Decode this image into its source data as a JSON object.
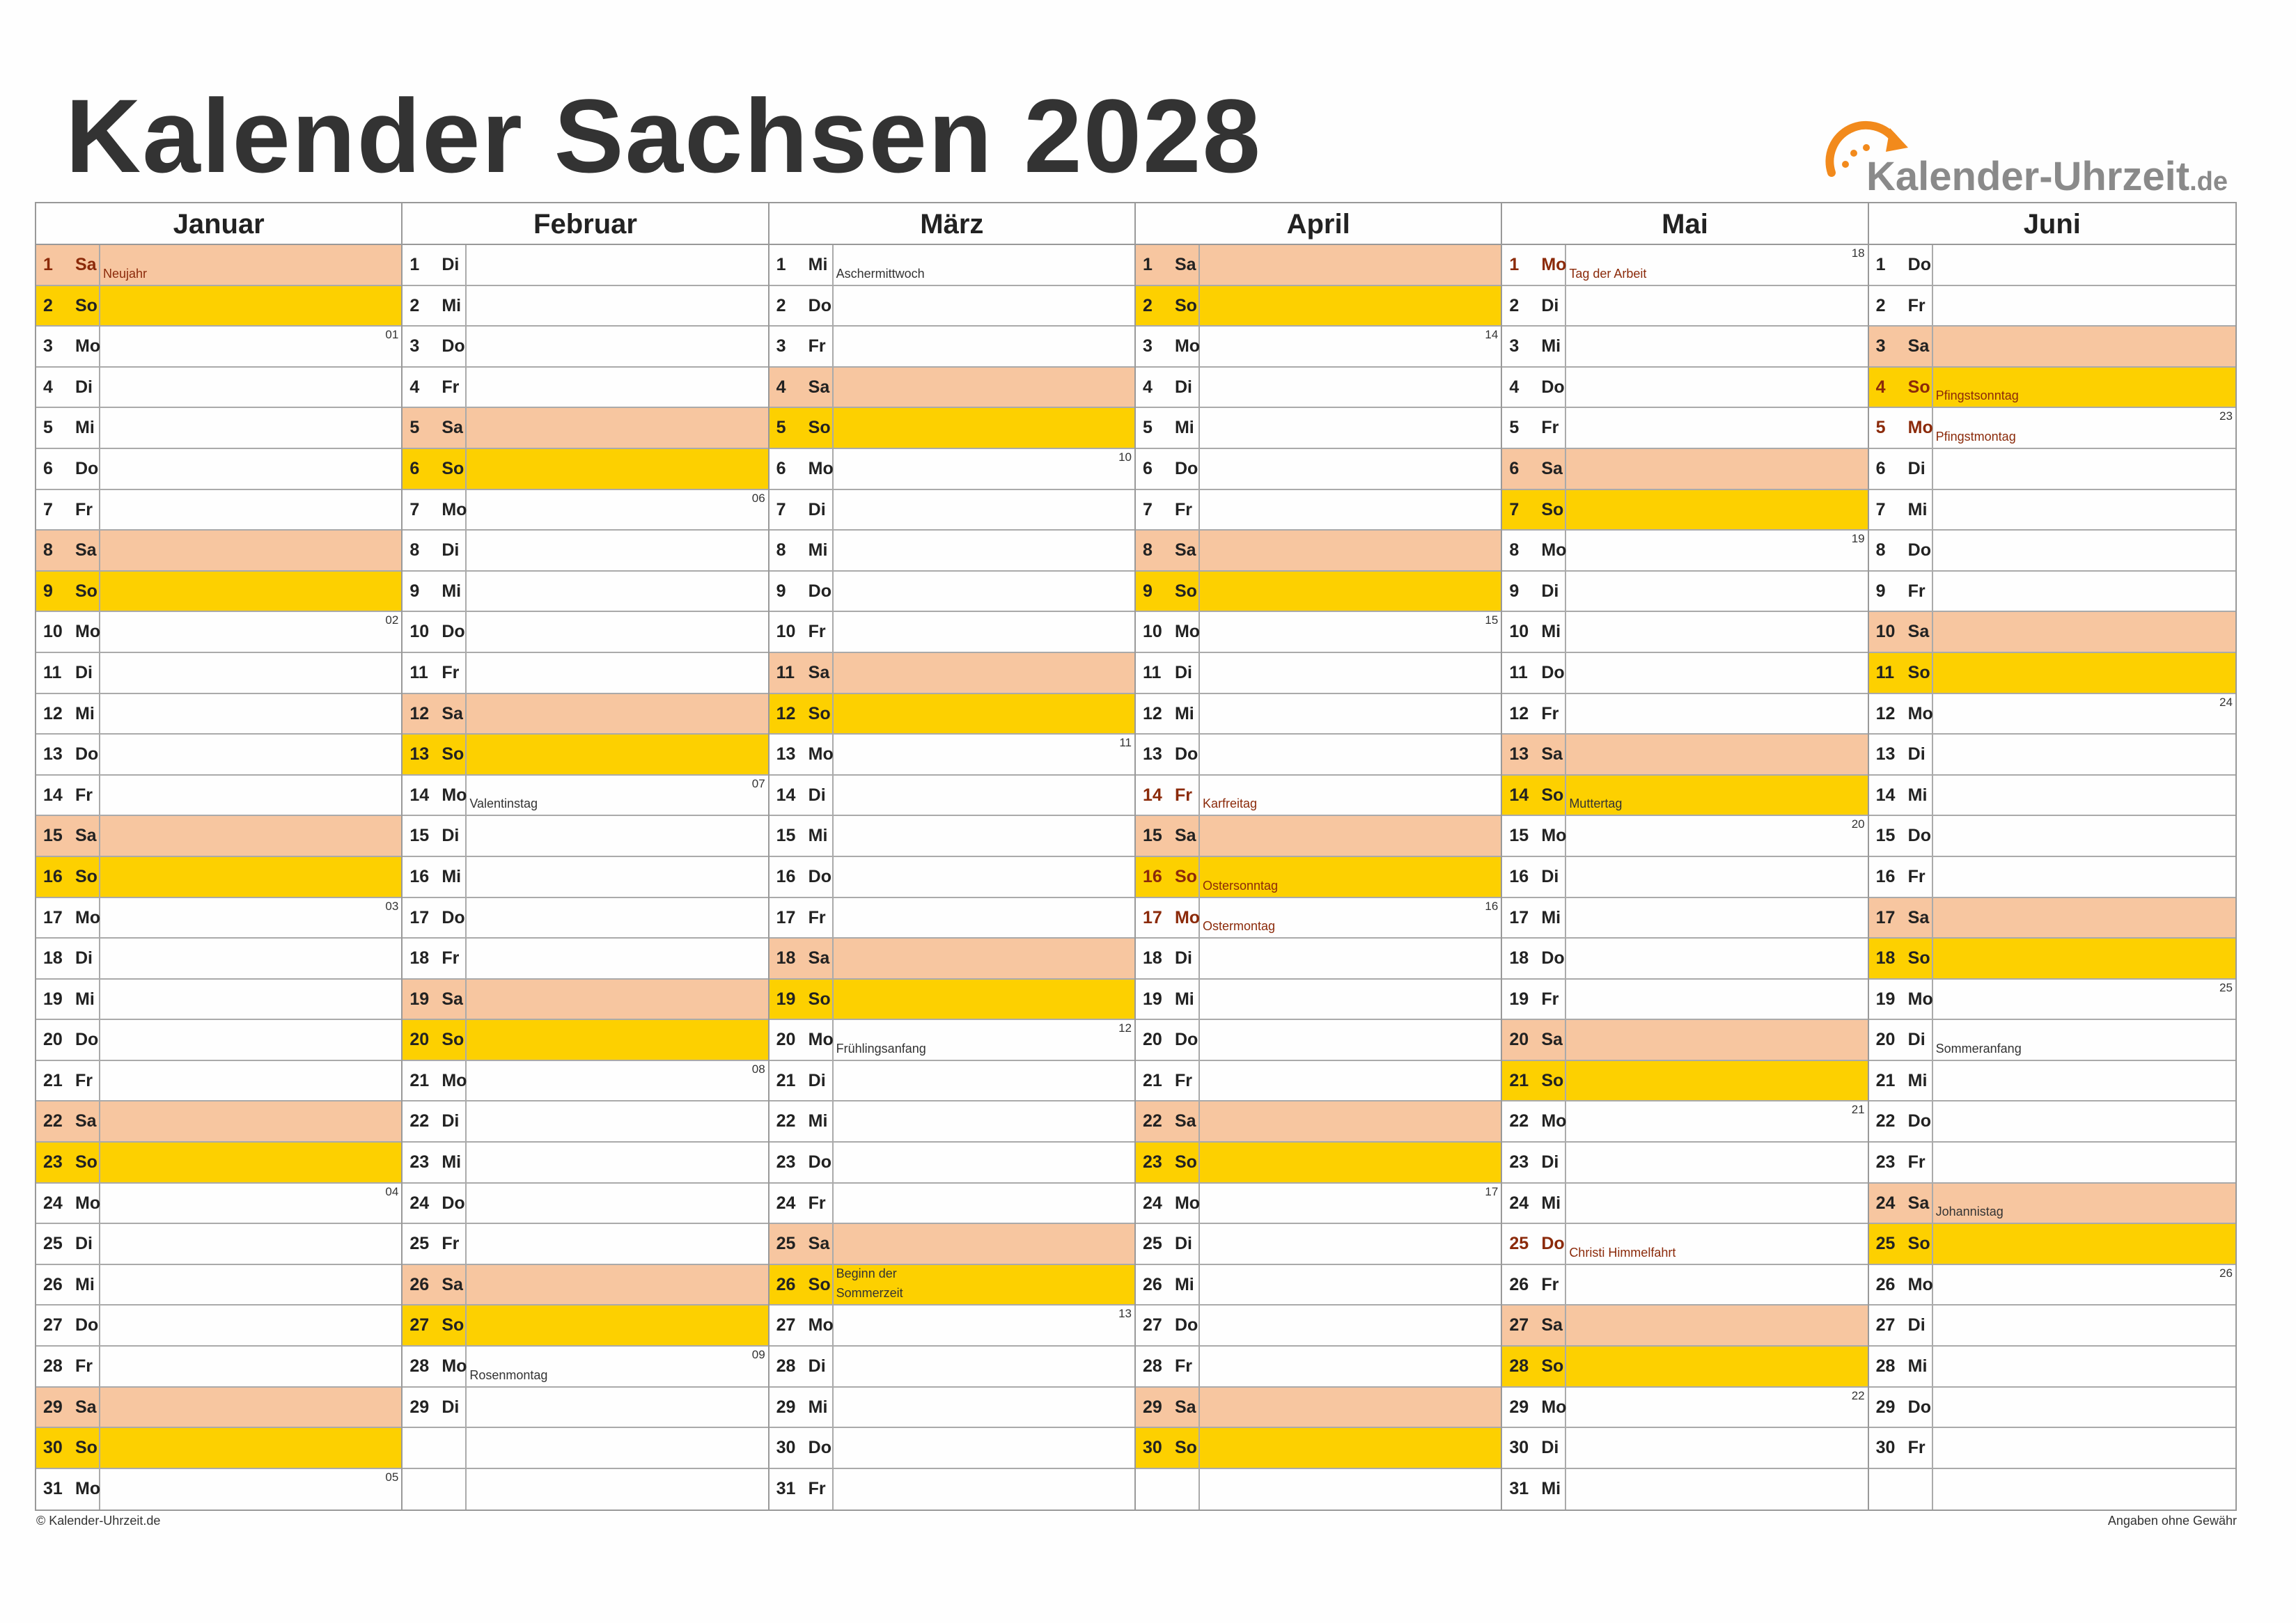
{
  "title": "Kalender Sachsen 2028",
  "logo": {
    "name": "Kalender-Uhrzeit",
    "tld": ".de",
    "icon": "clock-arrow-icon",
    "accent": "#f28a1c"
  },
  "footer": {
    "left": "© Kalender-Uhrzeit.de",
    "right": "Angaben ohne Gewähr"
  },
  "colors": {
    "saturday": "#f7c6a0",
    "sunday": "#fdd000",
    "holiday_text": "#8b2a0a"
  },
  "months": [
    {
      "name": "Januar",
      "days": [
        {
          "d": "1",
          "wd": "Sa",
          "type": "sat",
          "hol": true,
          "ev": "Neujahr"
        },
        {
          "d": "2",
          "wd": "So",
          "type": "sun"
        },
        {
          "d": "3",
          "wd": "Mo",
          "wk": "01"
        },
        {
          "d": "4",
          "wd": "Di"
        },
        {
          "d": "5",
          "wd": "Mi"
        },
        {
          "d": "6",
          "wd": "Do"
        },
        {
          "d": "7",
          "wd": "Fr"
        },
        {
          "d": "8",
          "wd": "Sa",
          "type": "sat"
        },
        {
          "d": "9",
          "wd": "So",
          "type": "sun"
        },
        {
          "d": "10",
          "wd": "Mo",
          "wk": "02"
        },
        {
          "d": "11",
          "wd": "Di"
        },
        {
          "d": "12",
          "wd": "Mi"
        },
        {
          "d": "13",
          "wd": "Do"
        },
        {
          "d": "14",
          "wd": "Fr"
        },
        {
          "d": "15",
          "wd": "Sa",
          "type": "sat"
        },
        {
          "d": "16",
          "wd": "So",
          "type": "sun"
        },
        {
          "d": "17",
          "wd": "Mo",
          "wk": "03"
        },
        {
          "d": "18",
          "wd": "Di"
        },
        {
          "d": "19",
          "wd": "Mi"
        },
        {
          "d": "20",
          "wd": "Do"
        },
        {
          "d": "21",
          "wd": "Fr"
        },
        {
          "d": "22",
          "wd": "Sa",
          "type": "sat"
        },
        {
          "d": "23",
          "wd": "So",
          "type": "sun"
        },
        {
          "d": "24",
          "wd": "Mo",
          "wk": "04"
        },
        {
          "d": "25",
          "wd": "Di"
        },
        {
          "d": "26",
          "wd": "Mi"
        },
        {
          "d": "27",
          "wd": "Do"
        },
        {
          "d": "28",
          "wd": "Fr"
        },
        {
          "d": "29",
          "wd": "Sa",
          "type": "sat"
        },
        {
          "d": "30",
          "wd": "So",
          "type": "sun"
        },
        {
          "d": "31",
          "wd": "Mo",
          "wk": "05"
        }
      ]
    },
    {
      "name": "Februar",
      "days": [
        {
          "d": "1",
          "wd": "Di"
        },
        {
          "d": "2",
          "wd": "Mi"
        },
        {
          "d": "3",
          "wd": "Do"
        },
        {
          "d": "4",
          "wd": "Fr"
        },
        {
          "d": "5",
          "wd": "Sa",
          "type": "sat"
        },
        {
          "d": "6",
          "wd": "So",
          "type": "sun"
        },
        {
          "d": "7",
          "wd": "Mo",
          "wk": "06"
        },
        {
          "d": "8",
          "wd": "Di"
        },
        {
          "d": "9",
          "wd": "Mi"
        },
        {
          "d": "10",
          "wd": "Do"
        },
        {
          "d": "11",
          "wd": "Fr"
        },
        {
          "d": "12",
          "wd": "Sa",
          "type": "sat"
        },
        {
          "d": "13",
          "wd": "So",
          "type": "sun"
        },
        {
          "d": "14",
          "wd": "Mo",
          "wk": "07",
          "ev": "Valentinstag"
        },
        {
          "d": "15",
          "wd": "Di"
        },
        {
          "d": "16",
          "wd": "Mi"
        },
        {
          "d": "17",
          "wd": "Do"
        },
        {
          "d": "18",
          "wd": "Fr"
        },
        {
          "d": "19",
          "wd": "Sa",
          "type": "sat"
        },
        {
          "d": "20",
          "wd": "So",
          "type": "sun"
        },
        {
          "d": "21",
          "wd": "Mo",
          "wk": "08"
        },
        {
          "d": "22",
          "wd": "Di"
        },
        {
          "d": "23",
          "wd": "Mi"
        },
        {
          "d": "24",
          "wd": "Do"
        },
        {
          "d": "25",
          "wd": "Fr"
        },
        {
          "d": "26",
          "wd": "Sa",
          "type": "sat"
        },
        {
          "d": "27",
          "wd": "So",
          "type": "sun"
        },
        {
          "d": "28",
          "wd": "Mo",
          "wk": "09",
          "ev": "Rosenmontag"
        },
        {
          "d": "29",
          "wd": "Di"
        }
      ]
    },
    {
      "name": "März",
      "days": [
        {
          "d": "1",
          "wd": "Mi",
          "ev": "Aschermittwoch"
        },
        {
          "d": "2",
          "wd": "Do"
        },
        {
          "d": "3",
          "wd": "Fr"
        },
        {
          "d": "4",
          "wd": "Sa",
          "type": "sat"
        },
        {
          "d": "5",
          "wd": "So",
          "type": "sun"
        },
        {
          "d": "6",
          "wd": "Mo",
          "wk": "10"
        },
        {
          "d": "7",
          "wd": "Di"
        },
        {
          "d": "8",
          "wd": "Mi"
        },
        {
          "d": "9",
          "wd": "Do"
        },
        {
          "d": "10",
          "wd": "Fr"
        },
        {
          "d": "11",
          "wd": "Sa",
          "type": "sat"
        },
        {
          "d": "12",
          "wd": "So",
          "type": "sun"
        },
        {
          "d": "13",
          "wd": "Mo",
          "wk": "11"
        },
        {
          "d": "14",
          "wd": "Di"
        },
        {
          "d": "15",
          "wd": "Mi"
        },
        {
          "d": "16",
          "wd": "Do"
        },
        {
          "d": "17",
          "wd": "Fr"
        },
        {
          "d": "18",
          "wd": "Sa",
          "type": "sat"
        },
        {
          "d": "19",
          "wd": "So",
          "type": "sun"
        },
        {
          "d": "20",
          "wd": "Mo",
          "wk": "12",
          "ev": "Frühlingsanfang"
        },
        {
          "d": "21",
          "wd": "Di"
        },
        {
          "d": "22",
          "wd": "Mi"
        },
        {
          "d": "23",
          "wd": "Do"
        },
        {
          "d": "24",
          "wd": "Fr"
        },
        {
          "d": "25",
          "wd": "Sa",
          "type": "sat"
        },
        {
          "d": "26",
          "wd": "So",
          "type": "sun",
          "ev": "Beginn der Sommerzeit",
          "two": true
        },
        {
          "d": "27",
          "wd": "Mo",
          "wk": "13"
        },
        {
          "d": "28",
          "wd": "Di"
        },
        {
          "d": "29",
          "wd": "Mi"
        },
        {
          "d": "30",
          "wd": "Do"
        },
        {
          "d": "31",
          "wd": "Fr"
        }
      ]
    },
    {
      "name": "April",
      "days": [
        {
          "d": "1",
          "wd": "Sa",
          "type": "sat"
        },
        {
          "d": "2",
          "wd": "So",
          "type": "sun"
        },
        {
          "d": "3",
          "wd": "Mo",
          "wk": "14"
        },
        {
          "d": "4",
          "wd": "Di"
        },
        {
          "d": "5",
          "wd": "Mi"
        },
        {
          "d": "6",
          "wd": "Do"
        },
        {
          "d": "7",
          "wd": "Fr"
        },
        {
          "d": "8",
          "wd": "Sa",
          "type": "sat"
        },
        {
          "d": "9",
          "wd": "So",
          "type": "sun"
        },
        {
          "d": "10",
          "wd": "Mo",
          "wk": "15"
        },
        {
          "d": "11",
          "wd": "Di"
        },
        {
          "d": "12",
          "wd": "Mi"
        },
        {
          "d": "13",
          "wd": "Do"
        },
        {
          "d": "14",
          "wd": "Fr",
          "hol": true,
          "ev": "Karfreitag"
        },
        {
          "d": "15",
          "wd": "Sa",
          "type": "sat"
        },
        {
          "d": "16",
          "wd": "So",
          "type": "sun",
          "hol": true,
          "ev": "Ostersonntag"
        },
        {
          "d": "17",
          "wd": "Mo",
          "wk": "16",
          "hol": true,
          "ev": "Ostermontag"
        },
        {
          "d": "18",
          "wd": "Di"
        },
        {
          "d": "19",
          "wd": "Mi"
        },
        {
          "d": "20",
          "wd": "Do"
        },
        {
          "d": "21",
          "wd": "Fr"
        },
        {
          "d": "22",
          "wd": "Sa",
          "type": "sat"
        },
        {
          "d": "23",
          "wd": "So",
          "type": "sun"
        },
        {
          "d": "24",
          "wd": "Mo",
          "wk": "17"
        },
        {
          "d": "25",
          "wd": "Di"
        },
        {
          "d": "26",
          "wd": "Mi"
        },
        {
          "d": "27",
          "wd": "Do"
        },
        {
          "d": "28",
          "wd": "Fr"
        },
        {
          "d": "29",
          "wd": "Sa",
          "type": "sat"
        },
        {
          "d": "30",
          "wd": "So",
          "type": "sun"
        }
      ]
    },
    {
      "name": "Mai",
      "days": [
        {
          "d": "1",
          "wd": "Mo",
          "wk": "18",
          "hol": true,
          "ev": "Tag der Arbeit"
        },
        {
          "d": "2",
          "wd": "Di"
        },
        {
          "d": "3",
          "wd": "Mi"
        },
        {
          "d": "4",
          "wd": "Do"
        },
        {
          "d": "5",
          "wd": "Fr"
        },
        {
          "d": "6",
          "wd": "Sa",
          "type": "sat"
        },
        {
          "d": "7",
          "wd": "So",
          "type": "sun"
        },
        {
          "d": "8",
          "wd": "Mo",
          "wk": "19"
        },
        {
          "d": "9",
          "wd": "Di"
        },
        {
          "d": "10",
          "wd": "Mi"
        },
        {
          "d": "11",
          "wd": "Do"
        },
        {
          "d": "12",
          "wd": "Fr"
        },
        {
          "d": "13",
          "wd": "Sa",
          "type": "sat"
        },
        {
          "d": "14",
          "wd": "So",
          "type": "sun",
          "ev": "Muttertag"
        },
        {
          "d": "15",
          "wd": "Mo",
          "wk": "20"
        },
        {
          "d": "16",
          "wd": "Di"
        },
        {
          "d": "17",
          "wd": "Mi"
        },
        {
          "d": "18",
          "wd": "Do"
        },
        {
          "d": "19",
          "wd": "Fr"
        },
        {
          "d": "20",
          "wd": "Sa",
          "type": "sat"
        },
        {
          "d": "21",
          "wd": "So",
          "type": "sun"
        },
        {
          "d": "22",
          "wd": "Mo",
          "wk": "21"
        },
        {
          "d": "23",
          "wd": "Di"
        },
        {
          "d": "24",
          "wd": "Mi"
        },
        {
          "d": "25",
          "wd": "Do",
          "hol": true,
          "ev": "Christi Himmelfahrt"
        },
        {
          "d": "26",
          "wd": "Fr"
        },
        {
          "d": "27",
          "wd": "Sa",
          "type": "sat"
        },
        {
          "d": "28",
          "wd": "So",
          "type": "sun"
        },
        {
          "d": "29",
          "wd": "Mo",
          "wk": "22"
        },
        {
          "d": "30",
          "wd": "Di"
        },
        {
          "d": "31",
          "wd": "Mi"
        }
      ]
    },
    {
      "name": "Juni",
      "days": [
        {
          "d": "1",
          "wd": "Do"
        },
        {
          "d": "2",
          "wd": "Fr"
        },
        {
          "d": "3",
          "wd": "Sa",
          "type": "sat"
        },
        {
          "d": "4",
          "wd": "So",
          "type": "sun",
          "hol": true,
          "ev": "Pfingstsonntag"
        },
        {
          "d": "5",
          "wd": "Mo",
          "wk": "23",
          "hol": true,
          "ev": "Pfingstmontag"
        },
        {
          "d": "6",
          "wd": "Di"
        },
        {
          "d": "7",
          "wd": "Mi"
        },
        {
          "d": "8",
          "wd": "Do"
        },
        {
          "d": "9",
          "wd": "Fr"
        },
        {
          "d": "10",
          "wd": "Sa",
          "type": "sat"
        },
        {
          "d": "11",
          "wd": "So",
          "type": "sun"
        },
        {
          "d": "12",
          "wd": "Mo",
          "wk": "24"
        },
        {
          "d": "13",
          "wd": "Di"
        },
        {
          "d": "14",
          "wd": "Mi"
        },
        {
          "d": "15",
          "wd": "Do"
        },
        {
          "d": "16",
          "wd": "Fr"
        },
        {
          "d": "17",
          "wd": "Sa",
          "type": "sat"
        },
        {
          "d": "18",
          "wd": "So",
          "type": "sun"
        },
        {
          "d": "19",
          "wd": "Mo",
          "wk": "25"
        },
        {
          "d": "20",
          "wd": "Di",
          "ev": "Sommeranfang"
        },
        {
          "d": "21",
          "wd": "Mi"
        },
        {
          "d": "22",
          "wd": "Do"
        },
        {
          "d": "23",
          "wd": "Fr"
        },
        {
          "d": "24",
          "wd": "Sa",
          "type": "sat",
          "ev": "Johannistag"
        },
        {
          "d": "25",
          "wd": "So",
          "type": "sun"
        },
        {
          "d": "26",
          "wd": "Mo",
          "wk": "26"
        },
        {
          "d": "27",
          "wd": "Di"
        },
        {
          "d": "28",
          "wd": "Mi"
        },
        {
          "d": "29",
          "wd": "Do"
        },
        {
          "d": "30",
          "wd": "Fr"
        }
      ]
    }
  ]
}
